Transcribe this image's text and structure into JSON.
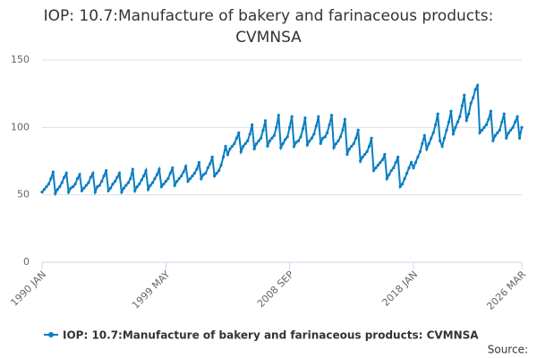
{
  "chart_data": {
    "type": "line",
    "title": "IOP: 10.7:Manufacture of bakery and farinaceous products: CVMNSA",
    "source": "Source:",
    "x": [
      "1990 JAN",
      "1990 MAR",
      "1990 MAY",
      "1990 JUL",
      "1990 SEP",
      "1990 NOV",
      "1991 JAN",
      "1991 MAR",
      "1991 MAY",
      "1991 JUL",
      "1991 SEP",
      "1991 NOV",
      "1992 JAN",
      "1992 MAR",
      "1992 MAY",
      "1992 JUL",
      "1992 SEP",
      "1992 NOV",
      "1993 JAN",
      "1993 MAR",
      "1993 MAY",
      "1993 JUL",
      "1993 SEP",
      "1993 NOV",
      "1994 JAN",
      "1994 MAR",
      "1994 MAY",
      "1994 JUL",
      "1994 SEP",
      "1994 NOV",
      "1995 JAN",
      "1995 MAR",
      "1995 MAY",
      "1995 JUL",
      "1995 SEP",
      "1995 NOV",
      "1996 JAN",
      "1996 MAR",
      "1996 MAY",
      "1996 JUL",
      "1996 SEP",
      "1996 NOV",
      "1997 JAN",
      "1997 MAR",
      "1997 MAY",
      "1997 JUL",
      "1997 SEP",
      "1997 NOV",
      "1998 JAN",
      "1998 MAR",
      "1998 MAY",
      "1998 JUL",
      "1998 SEP",
      "1998 NOV",
      "1999 JAN",
      "1999 MAR",
      "1999 MAY",
      "1999 JUL",
      "1999 SEP",
      "1999 NOV",
      "2000 JAN",
      "2000 MAR",
      "2000 MAY",
      "2000 JUL",
      "2000 SEP",
      "2000 NOV",
      "2001 JAN",
      "2001 MAR",
      "2001 MAY",
      "2001 JUL",
      "2001 SEP",
      "2001 NOV",
      "2002 JAN",
      "2002 MAR",
      "2002 MAY",
      "2002 JUL",
      "2002 SEP",
      "2002 NOV",
      "2003 JAN",
      "2003 MAR",
      "2003 MAY",
      "2003 JUL",
      "2003 SEP",
      "2003 NOV",
      "2004 JAN",
      "2004 MAR",
      "2004 MAY",
      "2004 JUL",
      "2004 SEP",
      "2004 NOV",
      "2005 JAN",
      "2005 MAR",
      "2005 MAY",
      "2005 JUL",
      "2005 SEP",
      "2005 NOV",
      "2006 JAN",
      "2006 MAR",
      "2006 MAY",
      "2006 JUL",
      "2006 SEP",
      "2006 NOV",
      "2007 JAN",
      "2007 MAR",
      "2007 MAY",
      "2007 JUL",
      "2007 SEP",
      "2007 NOV",
      "2008 JAN",
      "2008 MAR",
      "2008 MAY",
      "2008 JUL",
      "2008 SEP",
      "2008 NOV",
      "2009 JAN",
      "2009 MAR",
      "2009 MAY",
      "2009 JUL",
      "2009 SEP",
      "2009 NOV",
      "2010 JAN",
      "2010 MAR",
      "2010 MAY",
      "2010 JUL",
      "2010 SEP",
      "2010 NOV",
      "2011 JAN",
      "2011 MAR",
      "2011 MAY",
      "2011 JUL",
      "2011 SEP",
      "2011 NOV",
      "2012 JAN",
      "2012 MAR",
      "2012 MAY",
      "2012 JUL",
      "2012 SEP",
      "2012 NOV",
      "2013 JAN",
      "2013 MAR",
      "2013 MAY",
      "2013 JUL",
      "2013 SEP",
      "2013 NOV",
      "2014 JAN",
      "2014 MAR",
      "2014 MAY",
      "2014 JUL",
      "2014 SEP",
      "2014 NOV",
      "2015 JAN",
      "2015 MAR",
      "2015 MAY",
      "2015 JUL",
      "2015 SEP",
      "2015 NOV",
      "2016 JAN",
      "2016 MAR",
      "2016 MAY",
      "2016 JUL",
      "2016 SEP",
      "2016 NOV",
      "2017 JAN",
      "2017 MAR",
      "2017 MAY",
      "2017 JUL",
      "2017 SEP",
      "2017 NOV",
      "2018 JAN",
      "2018 MAR",
      "2018 MAY",
      "2018 JUL",
      "2018 SEP",
      "2018 NOV",
      "2019 JAN",
      "2019 MAR",
      "2019 MAY",
      "2019 JUL",
      "2019 SEP",
      "2019 NOV",
      "2020 JAN",
      "2020 MAR",
      "2020 MAY",
      "2020 JUL",
      "2020 SEP",
      "2020 NOV",
      "2021 JAN",
      "2021 MAR",
      "2021 MAY",
      "2021 JUL",
      "2021 SEP",
      "2021 NOV",
      "2022 JAN",
      "2022 MAR",
      "2022 MAY",
      "2022 JUL",
      "2022 SEP",
      "2022 NOV",
      "2023 JAN",
      "2023 MAR",
      "2023 MAY",
      "2023 JUL",
      "2023 SEP",
      "2023 NOV",
      "2024 JAN",
      "2024 MAR",
      "2024 MAY",
      "2024 JUL",
      "2024 SEP",
      "2024 NOV",
      "2025 JAN",
      "2025 MAR",
      "2025 MAY",
      "2025 JUL",
      "2025 SEP",
      "2025 NOV",
      "2026 JAN",
      "2026 MAR"
    ],
    "series": [
      {
        "name": "IOP: 10.7:Manufacture of bakery and farinaceous products: CVMNSA",
        "color": "#0a7dc2",
        "values": [
          52,
          54,
          56,
          58,
          62,
          67,
          51,
          54,
          56,
          59,
          63,
          66,
          52,
          55,
          56,
          58,
          62,
          65,
          53,
          55,
          57,
          59,
          63,
          66,
          52,
          56,
          57,
          60,
          64,
          68,
          53,
          55,
          58,
          60,
          63,
          66,
          52,
          55,
          57,
          59,
          62,
          69,
          53,
          56,
          58,
          61,
          64,
          68,
          54,
          57,
          59,
          62,
          65,
          69,
          56,
          58,
          60,
          62,
          66,
          70,
          57,
          60,
          62,
          64,
          67,
          71,
          60,
          62,
          64,
          66,
          69,
          74,
          62,
          65,
          66,
          70,
          73,
          78,
          64,
          66,
          68,
          72,
          78,
          86,
          80,
          84,
          86,
          88,
          92,
          96,
          82,
          86,
          88,
          90,
          95,
          102,
          84,
          88,
          90,
          92,
          98,
          105,
          86,
          90,
          92,
          94,
          100,
          109,
          85,
          88,
          91,
          93,
          100,
          108,
          86,
          89,
          90,
          93,
          99,
          107,
          87,
          90,
          92,
          95,
          101,
          108,
          88,
          92,
          93,
          96,
          102,
          109,
          85,
          88,
          90,
          93,
          98,
          106,
          80,
          84,
          86,
          88,
          92,
          98,
          75,
          78,
          80,
          82,
          86,
          92,
          68,
          70,
          72,
          74,
          76,
          80,
          62,
          65,
          68,
          70,
          74,
          78,
          56,
          58,
          62,
          66,
          70,
          74,
          70,
          74,
          78,
          82,
          88,
          94,
          84,
          88,
          92,
          96,
          102,
          110,
          90,
          86,
          92,
          98,
          104,
          112,
          95,
          100,
          104,
          108,
          116,
          124,
          105,
          110,
          118,
          122,
          128,
          131,
          96,
          98,
          100,
          102,
          106,
          112,
          90,
          94,
          96,
          98,
          104,
          110,
          92,
          96,
          98,
          100,
          104,
          108,
          92,
          100
        ]
      }
    ],
    "xticks": [
      "1990 JAN",
      "1999 MAY",
      "2008 SEP",
      "2018 JAN",
      "2026 MAR"
    ],
    "ylim": [
      0,
      150
    ],
    "yticks": [
      0,
      50,
      100,
      150
    ],
    "grid": true,
    "legend": "bottom"
  }
}
